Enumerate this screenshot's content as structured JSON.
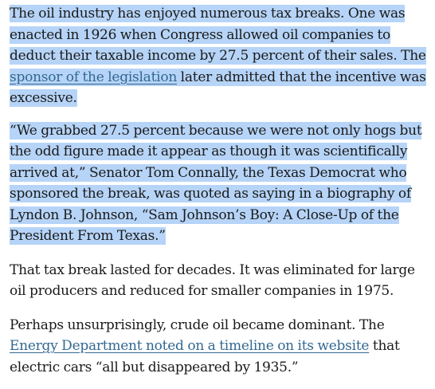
{
  "paragraphs": [
    {
      "highlighted": true,
      "text_before_link": "The oil industry has enjoyed numerous tax breaks. One was enacted in 1926 when Congress allowed oil companies to deduct their taxable income by 27.5 percent of their sales. The ",
      "link_text": "sponsor of the legislation",
      "text_after_link": " later admitted that the incentive was excessive."
    },
    {
      "highlighted": true,
      "text": "“We grabbed 27.5 percent because we were not only hogs but the odd figure made it appear as though it was scientifically arrived at,” Senator Tom Connally, the Texas Democrat who sponsored the break, was quoted as saying in a biography of Lyndon B. Johnson, “Sam Johnson’s Boy: A Close-Up of the President From Texas.”"
    },
    {
      "highlighted": false,
      "text": "That tax break lasted for decades. It was eliminated for large oil producers and reduced for smaller companies in 1975."
    },
    {
      "highlighted": false,
      "text_before_link": "Perhaps unsurprisingly, crude oil became dominant. The ",
      "link_text": "Energy Department noted on a timeline on its website",
      "text_after_link": " that electric cars “all but disappeared by 1935.”"
    }
  ],
  "colors": {
    "text": "#1a1a1a",
    "link": "#326891",
    "highlight": "#b6d4f7"
  }
}
